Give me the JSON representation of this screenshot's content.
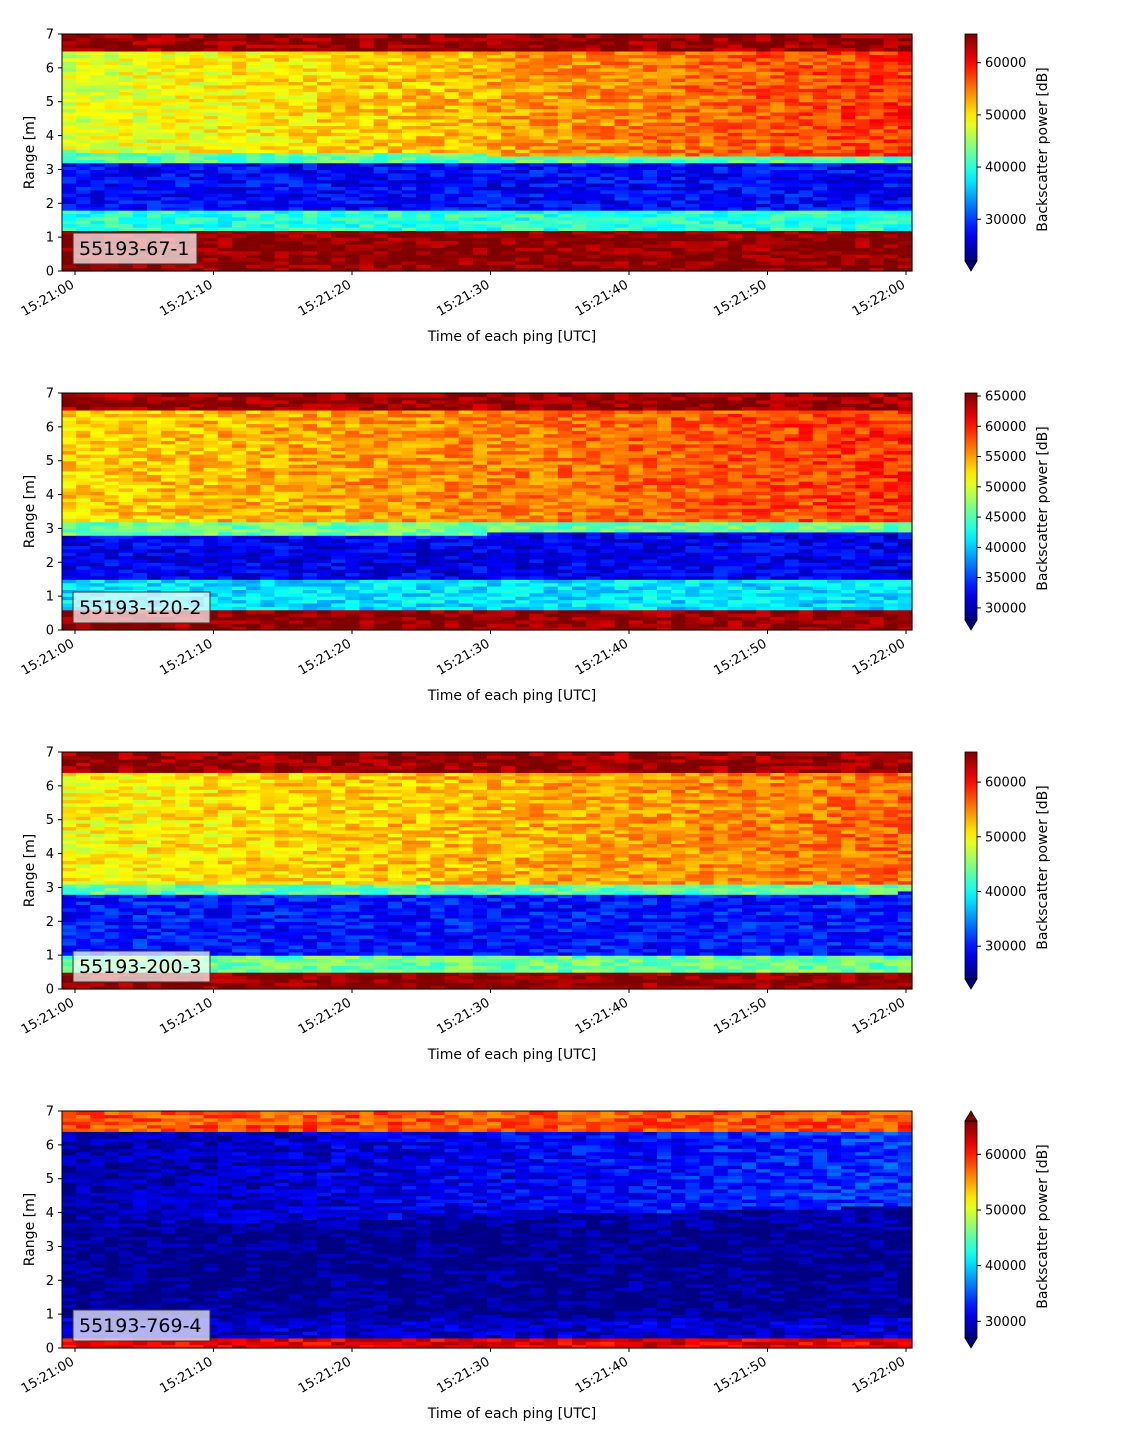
{
  "chart_data": [
    {
      "type": "heatmap",
      "instrument_label": "55193-67-1",
      "xlabel": "Time of each ping [UTC]",
      "ylabel": "Range [m]",
      "x_ticks": [
        "15:21:00",
        "15:21:10",
        "15:21:20",
        "15:21:30",
        "15:21:40",
        "15:21:50",
        "15:22:00"
      ],
      "x_range": [
        "15:21:00",
        "15:22:00"
      ],
      "y_ticks": [
        0,
        1,
        2,
        3,
        4,
        5,
        6,
        7
      ],
      "ylim": [
        0,
        7
      ],
      "colorbar": {
        "label": "Backscatter power [dB]",
        "ticks": [
          30000,
          40000,
          50000,
          60000
        ],
        "range": [
          22000,
          65500
        ],
        "extend": "min",
        "colormap": "jet"
      },
      "profile": {
        "time_fraction": [
          0,
          1
        ],
        "layers": [
          {
            "name": "surface",
            "top": 1.15,
            "value": 65000
          },
          {
            "name": "near-transition",
            "top": [
              1.75,
              1.75
            ],
            "value": 40000
          },
          {
            "name": "low-band",
            "top": [
              3.2,
              3.2
            ],
            "value": 27500
          },
          {
            "name": "transition",
            "top": [
              3.55,
              3.35
            ],
            "value": 42000
          },
          {
            "name": "upper",
            "top": [
              6.5,
              6.5
            ],
            "value": [
              47500,
              58000
            ]
          },
          {
            "name": "top",
            "top": 7,
            "value": 64500
          }
        ]
      }
    },
    {
      "type": "heatmap",
      "instrument_label": "55193-120-2",
      "xlabel": "Time of each ping [UTC]",
      "ylabel": "Range [m]",
      "x_ticks": [
        "15:21:00",
        "15:21:10",
        "15:21:20",
        "15:21:30",
        "15:21:40",
        "15:21:50",
        "15:22:00"
      ],
      "x_range": [
        "15:21:00",
        "15:22:00"
      ],
      "y_ticks": [
        0,
        1,
        2,
        3,
        4,
        5,
        6,
        7
      ],
      "ylim": [
        0,
        7
      ],
      "colorbar": {
        "label": "Backscatter power [dB]",
        "ticks": [
          30000,
          35000,
          40000,
          45000,
          50000,
          55000,
          60000,
          65000
        ],
        "range": [
          28000,
          65500
        ],
        "extend": "min",
        "colormap": "jet"
      },
      "profile": {
        "layers": [
          {
            "name": "surface",
            "top": 0.55,
            "value": 65000
          },
          {
            "name": "near-transition",
            "top": [
              1.5,
              1.5
            ],
            "value": 41000
          },
          {
            "name": "low-band",
            "top": [
              2.8,
              2.9
            ],
            "value": 32000
          },
          {
            "name": "transition",
            "top": [
              3.2,
              3.2
            ],
            "value": 46000
          },
          {
            "name": "upper",
            "top": [
              6.5,
              6.5
            ],
            "value": [
              53000,
              59000
            ]
          },
          {
            "name": "top",
            "top": 7,
            "value": 64500
          }
        ]
      }
    },
    {
      "type": "heatmap",
      "instrument_label": "55193-200-3",
      "xlabel": "Time of each ping [UTC]",
      "ylabel": "Range [m]",
      "x_ticks": [
        "15:21:00",
        "15:21:10",
        "15:21:20",
        "15:21:30",
        "15:21:40",
        "15:21:50",
        "15:22:00"
      ],
      "x_range": [
        "15:21:00",
        "15:22:00"
      ],
      "y_ticks": [
        0,
        1,
        2,
        3,
        4,
        5,
        6,
        7
      ],
      "ylim": [
        0,
        7
      ],
      "colorbar": {
        "label": "Backscatter power [dB]",
        "ticks": [
          30000,
          40000,
          50000,
          60000
        ],
        "range": [
          24000,
          65500
        ],
        "extend": "min",
        "colormap": "jet"
      },
      "profile": {
        "layers": [
          {
            "name": "surface",
            "top": 0.5,
            "value": 65000
          },
          {
            "name": "near-transition",
            "top": [
              1.0,
              1.0
            ],
            "value": 44000
          },
          {
            "name": "low-band",
            "top": [
              2.75,
              2.85
            ],
            "value": 30000
          },
          {
            "name": "transition",
            "top": [
              3.05,
              3.05
            ],
            "value": 43000
          },
          {
            "name": "upper",
            "top": [
              6.4,
              6.4
            ],
            "value": [
              50000,
              56000
            ]
          },
          {
            "name": "top",
            "top": 7,
            "value": 64500
          }
        ]
      }
    },
    {
      "type": "heatmap",
      "instrument_label": "55193-769-4",
      "xlabel": "Time of each ping [UTC]",
      "ylabel": "Range [m]",
      "x_ticks": [
        "15:21:00",
        "15:21:10",
        "15:21:20",
        "15:21:30",
        "15:21:40",
        "15:21:50",
        "15:22:00"
      ],
      "x_range": [
        "15:21:00",
        "15:22:00"
      ],
      "y_ticks": [
        0,
        1,
        2,
        3,
        4,
        5,
        6,
        7
      ],
      "ylim": [
        0,
        7
      ],
      "colorbar": {
        "label": "Backscatter power [dB]",
        "ticks": [
          30000,
          40000,
          50000,
          60000
        ],
        "range": [
          27000,
          66000
        ],
        "extend": "both",
        "colormap": "jet"
      },
      "profile": {
        "layers": [
          {
            "name": "surface",
            "top": 0.35,
            "value": 62000
          },
          {
            "name": "near-transition",
            "top": [
              0.9,
              0.9
            ],
            "value": 30000
          },
          {
            "name": "low-band",
            "top": [
              3.5,
              3.5
            ],
            "value": 27500
          },
          {
            "name": "transition",
            "top": [
              3.6,
              4.2
            ],
            "value": 28000
          },
          {
            "name": "upper",
            "top": [
              6.4,
              6.4
            ],
            "value": [
              28500,
              34000
            ]
          },
          {
            "name": "top",
            "top": 7,
            "value": 58000
          }
        ]
      }
    }
  ]
}
